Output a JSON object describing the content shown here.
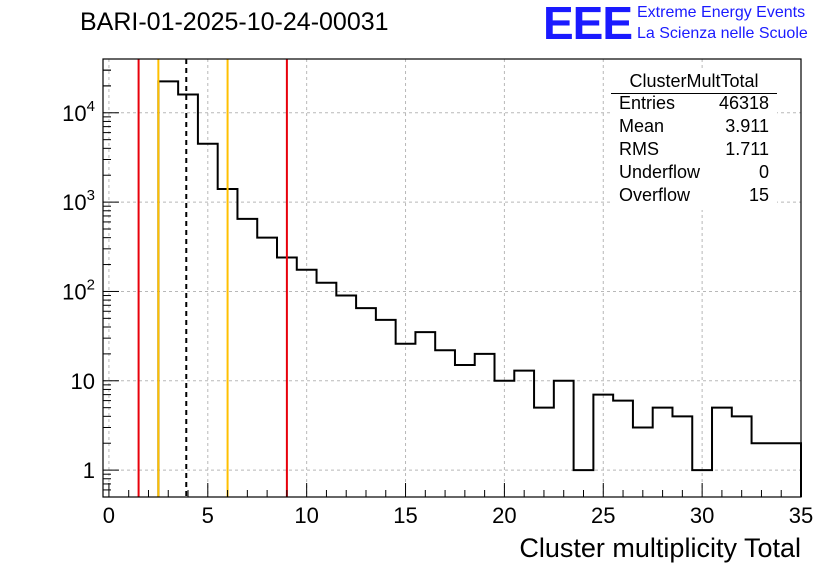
{
  "title": "BARI-01-2025-10-24-00031",
  "logo": {
    "mark": "EEE",
    "line1": "Extreme Energy Events",
    "line2": "La Scienza nelle Scuole"
  },
  "stats": {
    "name": "ClusterMultTotal",
    "rows": [
      {
        "key": "Entries",
        "value": "46318"
      },
      {
        "key": "Mean",
        "value": "3.911"
      },
      {
        "key": "RMS",
        "value": "1.711"
      },
      {
        "key": "Underflow",
        "value": "0"
      },
      {
        "key": "Overflow",
        "value": "15"
      }
    ]
  },
  "chart_data": {
    "type": "histogram",
    "title": "BARI-01-2025-10-24-00031",
    "xlabel": "Cluster multiplicity Total",
    "ylabel": "",
    "xlim": [
      -0.3,
      35
    ],
    "ylim": [
      0.5,
      40000
    ],
    "yscale": "log",
    "grid": true,
    "x_ticks": [
      0,
      5,
      10,
      15,
      20,
      25,
      30,
      35
    ],
    "x_tick_labels": [
      "0",
      "5",
      "10",
      "15",
      "20",
      "25",
      "30",
      "35"
    ],
    "y_ticks": [
      1,
      10,
      100,
      1000,
      10000
    ],
    "y_tick_labels": [
      "1",
      "10",
      "10^2",
      "10^3",
      "10^4"
    ],
    "bin_edges": [
      2.5,
      3.5,
      4.5,
      5.5,
      6.5,
      7.5,
      8.5,
      9.5,
      10.5,
      11.5,
      12.5,
      13.5,
      14.5,
      15.5,
      16.5,
      17.5,
      18.5,
      19.5,
      20.5,
      21.5,
      22.5,
      23.5,
      24.5,
      25.5,
      26.5,
      27.5,
      28.5,
      29.5,
      30.5,
      31.5,
      32.5,
      35
    ],
    "counts": [
      22500,
      16000,
      4500,
      1400,
      650,
      400,
      240,
      175,
      125,
      90,
      65,
      48,
      26,
      35,
      22,
      15,
      20,
      10,
      13,
      5,
      10,
      1,
      7,
      6,
      3,
      5,
      4,
      1,
      5,
      4,
      2
    ],
    "vertical_lines": [
      {
        "x": 1.5,
        "color": "#e8000b",
        "style": "solid"
      },
      {
        "x": 2.5,
        "color": "#ffc000",
        "style": "solid"
      },
      {
        "x": 3.911,
        "color": "#000000",
        "style": "dashed"
      },
      {
        "x": 6.0,
        "color": "#ffc000",
        "style": "solid"
      },
      {
        "x": 9.0,
        "color": "#e8000b",
        "style": "solid"
      }
    ]
  }
}
